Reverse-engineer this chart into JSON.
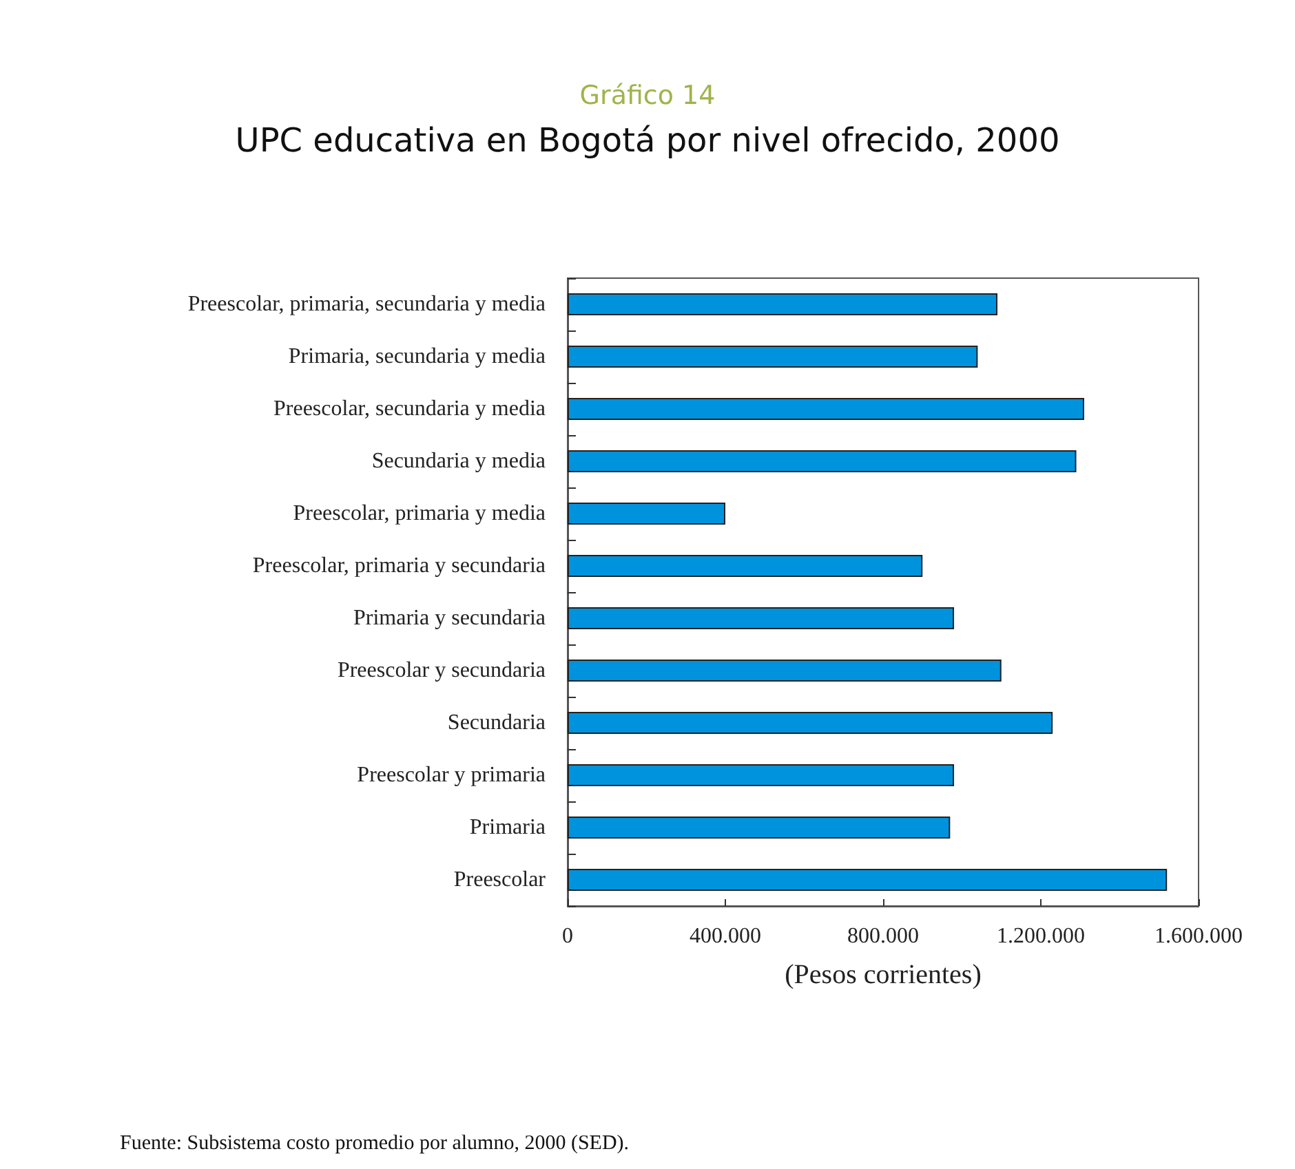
{
  "chart_data": {
    "type": "bar",
    "orientation": "horizontal",
    "title": "Gráfico 14",
    "subtitle": "UPC educativa en Bogotá por nivel ofrecido, 2000",
    "categories": [
      "Preescolar, primaria, secundaria y media",
      "Primaria, secundaria y media",
      "Preescolar, secundaria y media",
      "Secundaria y media",
      "Preescolar, primaria y media",
      "Preescolar, primaria y secundaria",
      "Primaria y secundaria",
      "Preescolar y secundaria",
      "Secundaria",
      "Preescolar y primaria",
      "Primaria",
      "Preescolar"
    ],
    "values": [
      1090000,
      1040000,
      1310000,
      1290000,
      400000,
      900000,
      980000,
      1100000,
      1230000,
      980000,
      970000,
      1520000
    ],
    "color": "#0093dd",
    "xlim": [
      0,
      1600000
    ],
    "xticks": [
      0,
      {
        "value": 400000,
        "label": "400.000"
      },
      {
        "value": 800000,
        "label": "800.000"
      },
      {
        "value": 1200000,
        "label": "1.200.000"
      },
      {
        "value": 1600000,
        "label": "1.600.000"
      }
    ],
    "xlabel": "(Pesos corrientes)",
    "grid": false,
    "annotations": [
      "Fuente: Subsistema costo promedio por alumno, 2000 (SED)."
    ]
  }
}
